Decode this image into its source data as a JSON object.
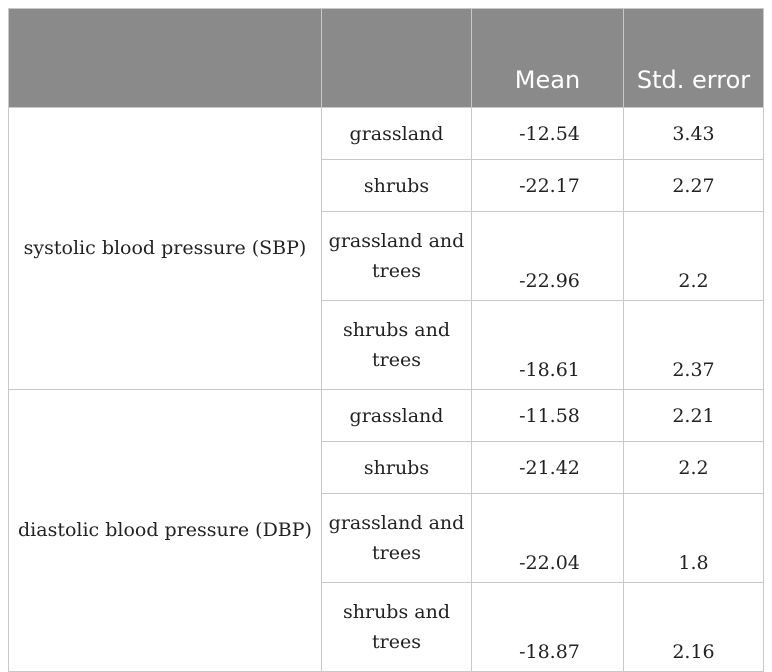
{
  "table": {
    "headers": [
      "",
      "",
      "Mean",
      "Std. error"
    ],
    "groups": [
      {
        "label": "systolic blood pressure (SBP)",
        "rows": [
          {
            "category": "grassland",
            "mean": "-12.54",
            "std_error": "3.43"
          },
          {
            "category": "shrubs",
            "mean": "-22.17",
            "std_error": "2.27"
          },
          {
            "category": "grassland and trees",
            "mean": "-22.96",
            "std_error": "2.2"
          },
          {
            "category": "shrubs and trees",
            "mean": "-18.61",
            "std_error": "2.37"
          }
        ]
      },
      {
        "label": "diastolic blood pressure (DBP)",
        "rows": [
          {
            "category": "grassland",
            "mean": "-11.58",
            "std_error": "2.21"
          },
          {
            "category": "shrubs",
            "mean": "-21.42",
            "std_error": "2.2"
          },
          {
            "category": "grassland and trees",
            "mean": "-22.04",
            "std_error": "1.8"
          },
          {
            "category": "shrubs and trees",
            "mean": "-18.87",
            "std_error": "2.16"
          }
        ]
      }
    ]
  },
  "colors": {
    "header_bg": "#8a8a8a",
    "header_text": "#ffffff",
    "border": "#c8c8c8"
  }
}
